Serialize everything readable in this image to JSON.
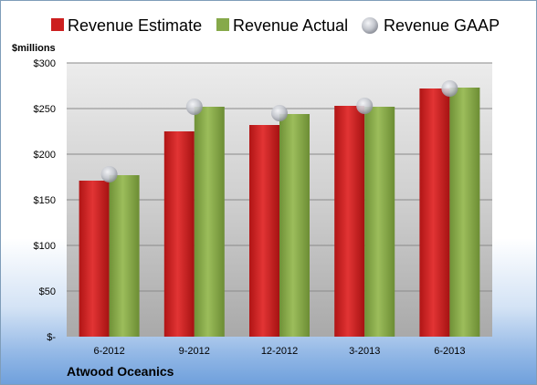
{
  "chart_data": {
    "type": "bar",
    "categories": [
      "6-2012",
      "9-2012",
      "12-2012",
      "3-2013",
      "6-2013"
    ],
    "series": [
      {
        "name": "Revenue Estimate",
        "kind": "bar",
        "color": "#cc1f1f",
        "values": [
          171,
          225,
          232,
          253,
          272
        ]
      },
      {
        "name": "Revenue Actual",
        "kind": "bar",
        "color": "#86a94a",
        "values": [
          177,
          252,
          244,
          252,
          273
        ]
      },
      {
        "name": "Revenue GAAP",
        "kind": "marker",
        "color": "#b8bcc4",
        "values": [
          178,
          252,
          245,
          253,
          272
        ]
      }
    ],
    "unit_label": "$millions",
    "y_ticks": [
      {
        "value": 0,
        "label": "$-"
      },
      {
        "value": 50,
        "label": "$50"
      },
      {
        "value": 100,
        "label": "$100"
      },
      {
        "value": 150,
        "label": "$150"
      },
      {
        "value": 200,
        "label": "$200"
      },
      {
        "value": 250,
        "label": "$250"
      },
      {
        "value": 300,
        "label": "$300"
      }
    ],
    "ylim": [
      0,
      300
    ],
    "grid": true,
    "legend_position": "top",
    "company": "Atwood Oceanics"
  }
}
